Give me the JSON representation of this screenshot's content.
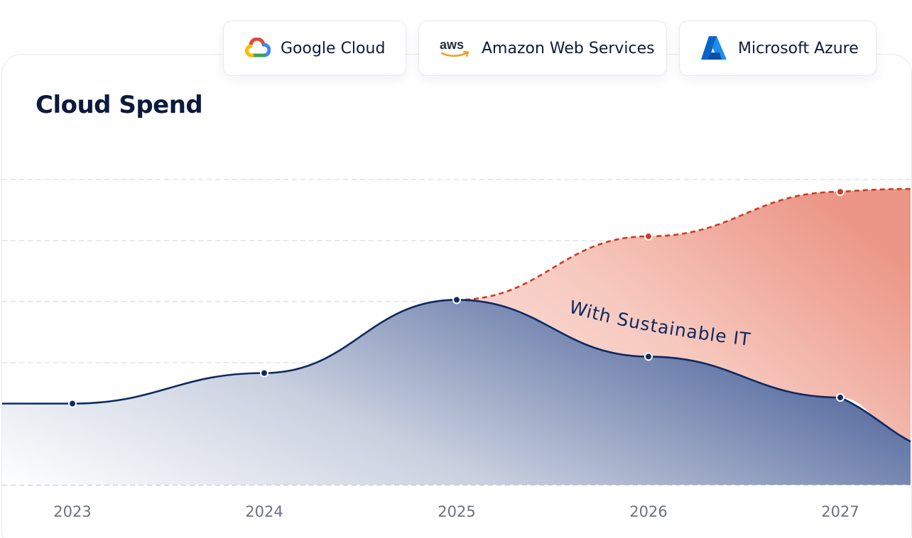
{
  "card": {
    "title": "Cloud Spend"
  },
  "providers": [
    {
      "name": "Google Cloud",
      "icon": "google-cloud-icon"
    },
    {
      "name": "Amazon Web Services",
      "icon": "aws-icon"
    },
    {
      "name": "Microsoft Azure",
      "icon": "azure-icon"
    }
  ],
  "chart_data": {
    "type": "area",
    "title": "Cloud Spend",
    "categories": [
      "2023",
      "2024",
      "2025",
      "2026",
      "2027"
    ],
    "ylim": [
      0,
      5
    ],
    "grid": true,
    "series": [
      {
        "name": "",
        "style": "dashed",
        "color": "#d13a22",
        "fill": "#f2aea0",
        "values": [
          null,
          null,
          3.03,
          4.07,
          4.8
        ]
      },
      {
        "name": "With Sustainable IT",
        "style": "solid",
        "color": "#0c2a63",
        "fill": "#5e73a3",
        "values": [
          1.33,
          1.83,
          3.03,
          2.1,
          1.43
        ]
      }
    ],
    "annotations": [
      "With Sustainable IT"
    ]
  },
  "colors": {
    "navy": "#0c2a63",
    "red": "#d13a22",
    "grid": "#d9dce3",
    "text": "#0c1a3d",
    "tick": "#6b7280"
  }
}
